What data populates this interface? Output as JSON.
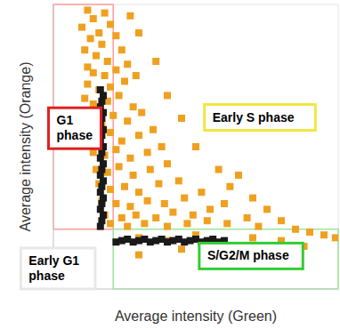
{
  "chart_data": {
    "type": "scatter",
    "x_label": "Average intensity (Green)",
    "y_label": "Average intensity (Orange)",
    "xlim": [
      0,
      100
    ],
    "ylim": [
      0,
      100
    ],
    "xticks": [
      0,
      20,
      40,
      60,
      80,
      100
    ],
    "yticks": [
      0,
      20,
      40,
      60,
      80,
      100
    ],
    "grid": true,
    "tick_labels": false,
    "marker": "square",
    "gates": {
      "x_threshold": 21,
      "y_threshold": 21,
      "g1_color": "#ff9a9a",
      "s_g2_m_color": "#9be59b"
    },
    "series": [
      {
        "color": "#f0a020",
        "x": [
          12,
          14,
          18,
          10,
          16,
          20,
          13,
          17,
          22,
          11,
          15,
          19,
          24,
          12,
          14,
          18,
          22,
          26,
          12,
          16,
          20,
          25,
          29,
          11,
          14,
          19,
          23,
          28,
          13,
          17,
          21,
          26,
          31,
          11,
          16,
          20,
          24,
          30,
          35,
          14,
          18,
          22,
          27,
          33,
          38,
          15,
          19,
          23,
          28,
          34,
          40,
          16,
          20,
          25,
          30,
          37,
          44,
          17,
          22,
          27,
          33,
          39,
          46,
          52,
          18,
          24,
          29,
          36,
          42,
          49,
          55,
          60,
          20,
          26,
          32,
          40,
          47,
          54,
          61,
          68,
          72,
          45,
          50,
          58,
          62,
          70,
          40,
          36,
          30,
          27,
          65,
          75,
          80,
          85,
          90,
          95,
          99,
          30,
          40,
          50,
          60,
          70,
          80,
          88,
          30,
          45,
          65
        ],
        "y": [
          98,
          95,
          97,
          92,
          90,
          93,
          88,
          86,
          89,
          84,
          82,
          80,
          84,
          78,
          76,
          75,
          77,
          79,
          72,
          70,
          71,
          73,
          75,
          67,
          65,
          66,
          68,
          64,
          60,
          58,
          61,
          59,
          62,
          55,
          53,
          55,
          52,
          54,
          56,
          48,
          47,
          49,
          46,
          48,
          50,
          42,
          41,
          43,
          40,
          42,
          44,
          37,
          35,
          36,
          34,
          37,
          38,
          31,
          30,
          29,
          31,
          30,
          32,
          34,
          26,
          25,
          26,
          25,
          27,
          26,
          28,
          30,
          23,
          22,
          23,
          22,
          23,
          24,
          23,
          25,
          22,
          60,
          50,
          42,
          36,
          32,
          68,
          80,
          90,
          96,
          40,
          28,
          24,
          21,
          20,
          19,
          18,
          18,
          17,
          19,
          16,
          18,
          17,
          15,
          12,
          14,
          13
        ]
      },
      {
        "color": "#1a1a1a",
        "x": [
          16.5,
          17,
          17.5,
          16.5,
          17,
          17.5,
          16.5,
          17,
          17.5,
          16.5,
          17,
          17.5,
          16.5,
          17,
          17.5,
          16.5,
          17,
          17.5,
          16.5,
          17,
          17.5,
          16.5,
          17,
          17.5,
          16.5,
          22,
          24,
          26,
          28,
          30,
          32,
          34,
          36,
          38,
          40,
          42,
          44,
          46,
          48,
          50,
          52,
          54,
          56,
          58,
          60
        ],
        "y": [
          22,
          24,
          26,
          28,
          30,
          32,
          34,
          36,
          38,
          40,
          42,
          44,
          46,
          48,
          50,
          52,
          54,
          56,
          58,
          60,
          62,
          64,
          66,
          68,
          70,
          16.5,
          17,
          17.5,
          16.5,
          17,
          17.5,
          16.5,
          17,
          17.5,
          16.5,
          17,
          17.5,
          16.5,
          17,
          17.5,
          16.5,
          17,
          17.5,
          16.5,
          17
        ]
      }
    ],
    "annotations": [
      {
        "text": "G1\nphase",
        "x": 7.5,
        "y": 56.5,
        "color": "#e02020"
      },
      {
        "text": "Early S phase",
        "x": 72.5,
        "y": 60.3,
        "color": "#f2e640"
      },
      {
        "text": "S/G2/M phase",
        "x": 69.4,
        "y": 11.6,
        "color": "#33cc33"
      },
      {
        "text": "Early G1\nphase",
        "x": 1.6,
        "y": 7.2,
        "color": "#e8e8e8"
      }
    ]
  }
}
